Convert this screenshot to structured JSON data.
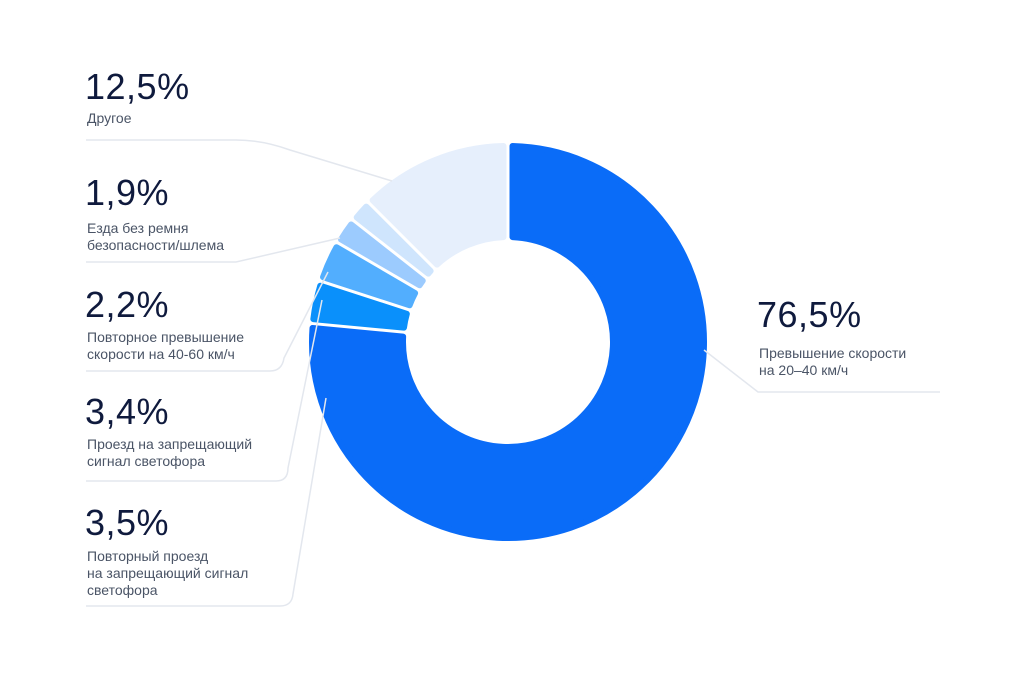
{
  "chart_data": {
    "type": "pie",
    "slices": [
      {
        "value": 76.5,
        "value_label": "76,5%",
        "label": "Превышение скорости\nна 20–40 км/ч",
        "color": "#0a6cf8"
      },
      {
        "value": 3.5,
        "value_label": "3,5%",
        "label": "Повторный проезд\nна запрещающий сигнал\nсветофора",
        "color": "#0a90fb"
      },
      {
        "value": 3.4,
        "value_label": "3,4%",
        "label": "Проезд на запрещающий\nсигнал светофора",
        "color": "#52aefe"
      },
      {
        "value": 2.2,
        "value_label": "2,2%",
        "label": "Повторное превышение\nскорости на 40-60 км/ч",
        "color": "#9ccbfe"
      },
      {
        "value": 1.9,
        "value_label": "1,9%",
        "label": "Езда без ремня\nбезопасности/шлема",
        "color": "#cfe5fd"
      },
      {
        "value": 12.5,
        "value_label": "12,5%",
        "label": "Другое",
        "color": "#e6effc"
      }
    ]
  }
}
